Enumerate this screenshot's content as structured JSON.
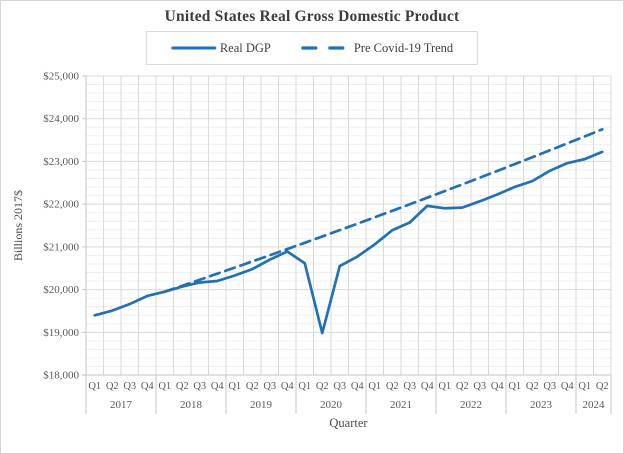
{
  "colors": {
    "line_blue": "#2071b8",
    "grid_major": "#d9d9d9",
    "grid_minor": "#efefef",
    "axis_line": "#c6c6c6",
    "tick_text": "#595959",
    "title_text": "#3d3d3d",
    "legend_border": "#d9d9d9"
  },
  "legend": {
    "items": [
      {
        "label": "Real DGP",
        "style": "solid"
      },
      {
        "label": "Pre Covid-19 Trend",
        "style": "dashed"
      }
    ]
  },
  "chart_data": {
    "type": "line",
    "title": "United States Real Gross Domestic Product",
    "xlabel": "Quarter",
    "ylabel": "Billions 2017$",
    "ylim": [
      18000,
      25000
    ],
    "y_major_step": 1000,
    "y_minor_step": 200,
    "y_tick_prefix": "$",
    "grid": "horizontal major+minor, vertical per quarter",
    "legend_position": "top-center",
    "quarters": [
      "Q1",
      "Q2",
      "Q3",
      "Q4",
      "Q1",
      "Q2",
      "Q3",
      "Q4",
      "Q1",
      "Q2",
      "Q3",
      "Q4",
      "Q1",
      "Q2",
      "Q3",
      "Q4",
      "Q1",
      "Q2",
      "Q3",
      "Q4",
      "Q1",
      "Q2",
      "Q3",
      "Q4",
      "Q1",
      "Q2",
      "Q3",
      "Q4",
      "Q1",
      "Q2"
    ],
    "years": [
      {
        "label": "2017",
        "span": 4
      },
      {
        "label": "2018",
        "span": 4
      },
      {
        "label": "2019",
        "span": 4
      },
      {
        "label": "2020",
        "span": 4
      },
      {
        "label": "2021",
        "span": 4
      },
      {
        "label": "2022",
        "span": 4
      },
      {
        "label": "2023",
        "span": 4
      },
      {
        "label": "2024",
        "span": 2
      }
    ],
    "series": [
      {
        "name": "Real DGP",
        "line_style": "solid",
        "start_index": 0,
        "values": [
          19398,
          19506,
          19661,
          19850,
          19951,
          20070,
          20166,
          20201,
          20329,
          20479,
          20699,
          20891,
          20617,
          18982,
          20549,
          20771,
          21058,
          21389,
          21571,
          21960,
          21903,
          21919,
          22066,
          22225,
          22403,
          22539,
          22780,
          22960,
          23054,
          23224
        ]
      },
      {
        "name": "Pre Covid-19 Trend",
        "line_style": "dashed",
        "start_index": 4,
        "values": [
          19950,
          20090,
          20230,
          20372,
          20515,
          20658,
          20803,
          20948,
          21095,
          21243,
          21391,
          21541,
          21692,
          21844,
          21997,
          22151,
          22306,
          22462,
          22619,
          22777,
          22937,
          23097,
          23259,
          23422,
          23586,
          23751
        ]
      }
    ]
  }
}
